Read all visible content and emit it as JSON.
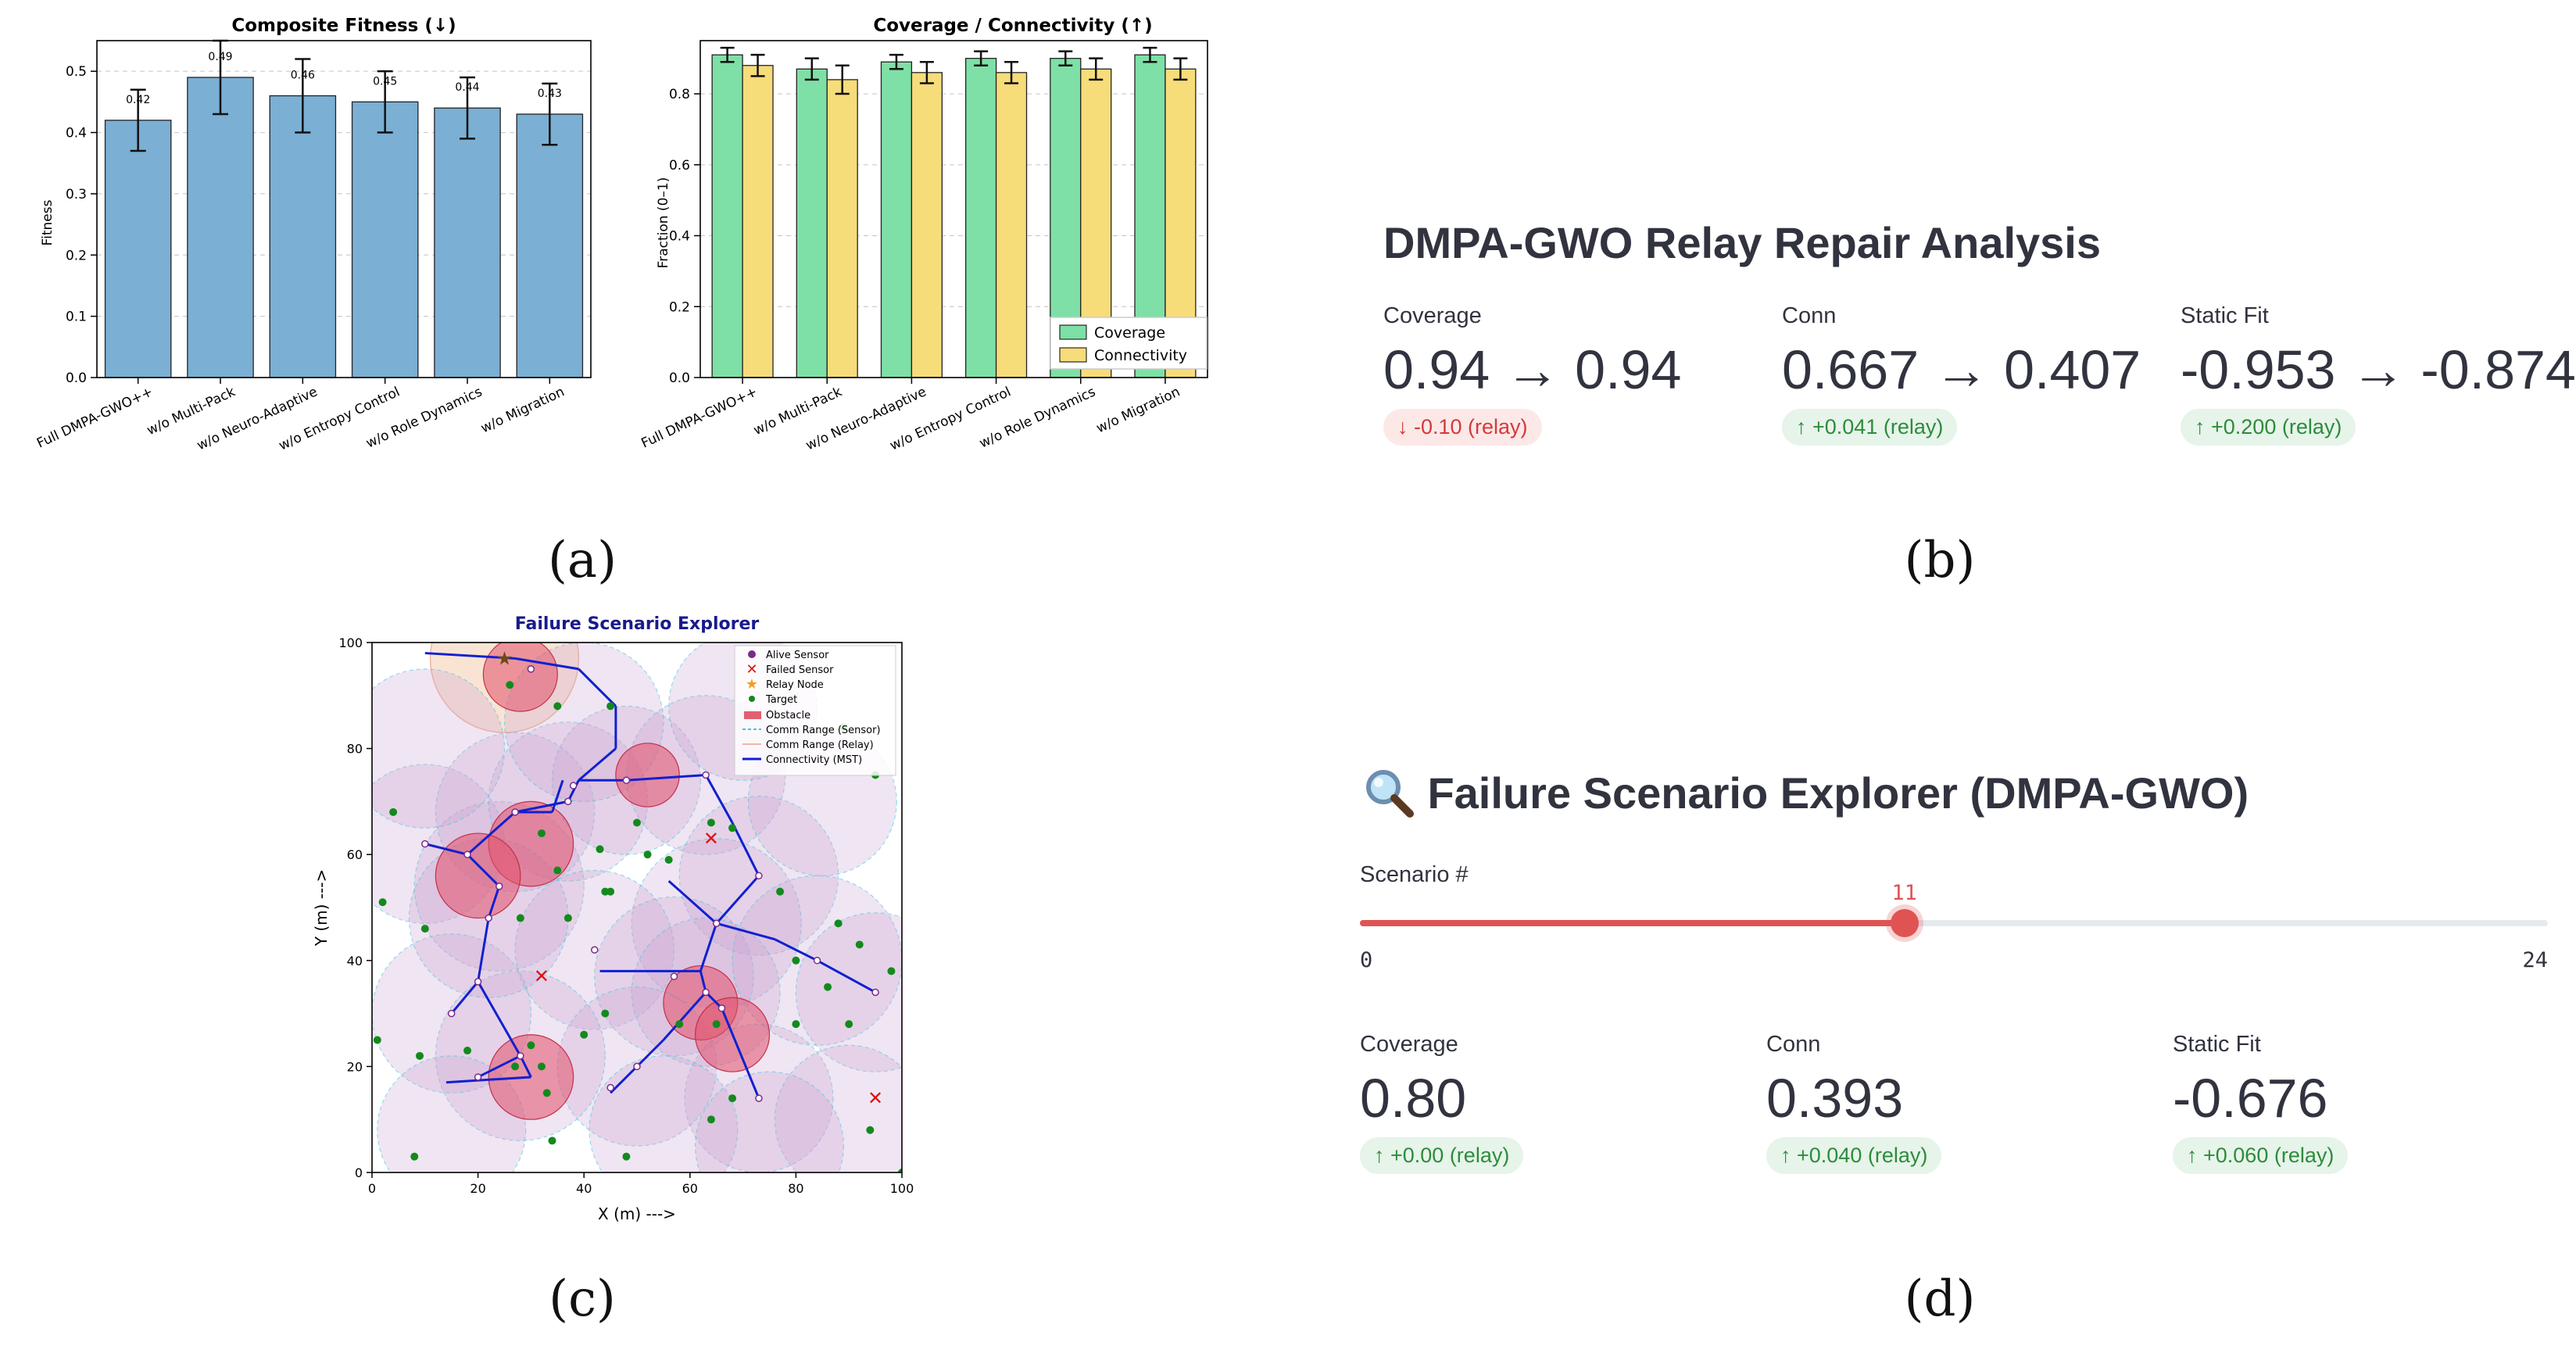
{
  "panel_labels": [
    "(a)",
    "(b)",
    "(c)",
    "(d)"
  ],
  "chart_data": [
    {
      "type": "bar",
      "title": "Composite Fitness (↓)",
      "xlabel": "",
      "ylabel": "Fitness",
      "ylim": [
        0,
        0.55
      ],
      "yticks": [
        0.0,
        0.1,
        0.2,
        0.3,
        0.4,
        0.5
      ],
      "categories": [
        "Full DMPA-GWO++",
        "w/o Multi-Pack",
        "w/o Neuro-Adaptive",
        "w/o Entropy Control",
        "w/o Role Dynamics",
        "w/o Migration"
      ],
      "values": [
        0.42,
        0.49,
        0.46,
        0.45,
        0.44,
        0.43
      ],
      "errors": [
        0.05,
        0.06,
        0.06,
        0.05,
        0.05,
        0.05
      ],
      "labels": [
        "0.42",
        "0.49",
        "0.46",
        "0.45",
        "0.44",
        "0.43"
      ],
      "color": "#7bafd4",
      "grid": "y-dashed"
    },
    {
      "type": "bar",
      "title": "Coverage / Connectivity (↑)",
      "xlabel": "",
      "ylabel": "Fraction (0–1)",
      "ylim": [
        0,
        0.95
      ],
      "yticks": [
        0.0,
        0.2,
        0.4,
        0.6,
        0.8
      ],
      "categories": [
        "Full DMPA-GWO++",
        "w/o Multi-Pack",
        "w/o Neuro-Adaptive",
        "w/o Entropy Control",
        "w/o Role Dynamics",
        "w/o Migration"
      ],
      "series": [
        {
          "name": "Coverage",
          "values": [
            0.91,
            0.87,
            0.89,
            0.9,
            0.9,
            0.91
          ],
          "errors": [
            0.02,
            0.03,
            0.02,
            0.02,
            0.02,
            0.02
          ],
          "color": "#7ee0a6"
        },
        {
          "name": "Connectivity",
          "values": [
            0.88,
            0.84,
            0.86,
            0.86,
            0.87,
            0.87
          ],
          "errors": [
            0.03,
            0.04,
            0.03,
            0.03,
            0.03,
            0.03
          ],
          "color": "#f7dc7a"
        }
      ],
      "legend": "bottom-right",
      "grid": "y-dashed"
    },
    {
      "type": "scatter",
      "title": "Failure Scenario Explorer",
      "xlabel": "X (m) --->",
      "ylabel": "Y (m) --->",
      "xlim": [
        0,
        100
      ],
      "ylim": [
        0,
        100
      ],
      "xticks": [
        0,
        20,
        40,
        60,
        80,
        100
      ],
      "yticks": [
        0,
        20,
        40,
        60,
        80,
        100
      ],
      "legend_entries": [
        "Alive Sensor",
        "Failed Sensor",
        "Relay Node",
        "Target",
        "Obstacle",
        "Comm Range (Sensor)",
        "Comm Range (Relay)",
        "Connectivity (MST)"
      ],
      "alive_sensors": [
        [
          10,
          62
        ],
        [
          18,
          60
        ],
        [
          24,
          54
        ],
        [
          27,
          68
        ],
        [
          37,
          70
        ],
        [
          38,
          73
        ],
        [
          48,
          74
        ],
        [
          63,
          75
        ],
        [
          73,
          56
        ],
        [
          65,
          47
        ],
        [
          42,
          42
        ],
        [
          57,
          37
        ],
        [
          63,
          34
        ],
        [
          66,
          31
        ],
        [
          73,
          14
        ],
        [
          84,
          40
        ],
        [
          95,
          34
        ],
        [
          50,
          20
        ],
        [
          45,
          16
        ],
        [
          28,
          22
        ],
        [
          20,
          18
        ],
        [
          15,
          30
        ],
        [
          20,
          36
        ],
        [
          22,
          48
        ],
        [
          30,
          95
        ]
      ],
      "failed_sensors": [
        [
          64,
          63
        ],
        [
          32,
          37
        ],
        [
          95,
          14
        ]
      ],
      "relay_nodes": [
        [
          25,
          97
        ]
      ],
      "targets": [
        [
          4,
          68
        ],
        [
          2,
          51
        ],
        [
          10,
          46
        ],
        [
          9,
          22
        ],
        [
          1,
          25
        ],
        [
          8,
          3
        ],
        [
          18,
          23
        ],
        [
          30,
          24
        ],
        [
          32,
          20
        ],
        [
          33,
          15
        ],
        [
          34,
          6
        ],
        [
          48,
          3
        ],
        [
          27,
          20
        ],
        [
          26,
          92
        ],
        [
          35,
          88
        ],
        [
          45,
          88
        ],
        [
          44,
          53
        ],
        [
          45,
          53
        ],
        [
          52,
          60
        ],
        [
          64,
          66
        ],
        [
          68,
          65
        ],
        [
          56,
          59
        ],
        [
          43,
          61
        ],
        [
          32,
          64
        ],
        [
          50,
          66
        ],
        [
          40,
          26
        ],
        [
          44,
          30
        ],
        [
          58,
          28
        ],
        [
          65,
          28
        ],
        [
          80,
          40
        ],
        [
          80,
          28
        ],
        [
          86,
          35
        ],
        [
          88,
          47
        ],
        [
          90,
          28
        ],
        [
          92,
          43
        ],
        [
          94,
          8
        ],
        [
          98,
          38
        ],
        [
          100,
          0
        ],
        [
          95,
          75
        ],
        [
          89,
          84
        ],
        [
          77,
          53
        ],
        [
          64,
          10
        ],
        [
          68,
          14
        ],
        [
          37,
          48
        ],
        [
          35,
          57
        ],
        [
          28,
          48
        ]
      ],
      "obstacles": [
        [
          28,
          94,
          7
        ],
        [
          52,
          75,
          6
        ],
        [
          30,
          62,
          8
        ],
        [
          20,
          56,
          8
        ],
        [
          62,
          32,
          7
        ],
        [
          68,
          26,
          7
        ],
        [
          30,
          18,
          8
        ]
      ],
      "sensor_ranges": [
        [
          10,
          62,
          15
        ],
        [
          24,
          54,
          16
        ],
        [
          27,
          68,
          15
        ],
        [
          37,
          70,
          15
        ],
        [
          48,
          74,
          14
        ],
        [
          63,
          75,
          15
        ],
        [
          73,
          56,
          15
        ],
        [
          65,
          47,
          16
        ],
        [
          42,
          42,
          15
        ],
        [
          57,
          37,
          15
        ],
        [
          63,
          34,
          14
        ],
        [
          73,
          14,
          14
        ],
        [
          84,
          40,
          16
        ],
        [
          95,
          34,
          15
        ],
        [
          50,
          20,
          15
        ],
        [
          28,
          22,
          16
        ],
        [
          15,
          30,
          15
        ],
        [
          22,
          48,
          15
        ],
        [
          10,
          80,
          15
        ],
        [
          70,
          88,
          14
        ],
        [
          40,
          85,
          15
        ],
        [
          85,
          70,
          14
        ],
        [
          90,
          10,
          14
        ],
        [
          15,
          8,
          14
        ],
        [
          55,
          8,
          14
        ],
        [
          75,
          5,
          14
        ]
      ],
      "relay_range": [
        25,
        97,
        14
      ],
      "mst_edges": [
        [
          [
            10,
            98
          ],
          [
            27,
            97
          ]
        ],
        [
          [
            27,
            97
          ],
          [
            39,
            95
          ]
        ],
        [
          [
            39,
            95
          ],
          [
            46,
            88
          ]
        ],
        [
          [
            46,
            88
          ],
          [
            46,
            80
          ]
        ],
        [
          [
            46,
            80
          ],
          [
            39,
            74
          ]
        ],
        [
          [
            39,
            74
          ],
          [
            37,
            70
          ]
        ],
        [
          [
            37,
            70
          ],
          [
            27,
            68
          ]
        ],
        [
          [
            27,
            68
          ],
          [
            18,
            60
          ]
        ],
        [
          [
            18,
            60
          ],
          [
            10,
            62
          ]
        ],
        [
          [
            18,
            60
          ],
          [
            24,
            54
          ]
        ],
        [
          [
            24,
            54
          ],
          [
            22,
            48
          ]
        ],
        [
          [
            22,
            48
          ],
          [
            20,
            36
          ]
        ],
        [
          [
            20,
            36
          ],
          [
            15,
            30
          ]
        ],
        [
          [
            20,
            36
          ],
          [
            28,
            22
          ]
        ],
        [
          [
            28,
            22
          ],
          [
            20,
            18
          ]
        ],
        [
          [
            28,
            22
          ],
          [
            30,
            18
          ]
        ],
        [
          [
            30,
            18
          ],
          [
            14,
            17
          ]
        ],
        [
          [
            39,
            74
          ],
          [
            48,
            74
          ]
        ],
        [
          [
            48,
            74
          ],
          [
            63,
            75
          ]
        ],
        [
          [
            63,
            75
          ],
          [
            68,
            66
          ]
        ],
        [
          [
            68,
            66
          ],
          [
            73,
            56
          ]
        ],
        [
          [
            73,
            56
          ],
          [
            65,
            47
          ]
        ],
        [
          [
            65,
            47
          ],
          [
            56,
            55
          ]
        ],
        [
          [
            65,
            47
          ],
          [
            76,
            44
          ]
        ],
        [
          [
            76,
            44
          ],
          [
            84,
            40
          ]
        ],
        [
          [
            84,
            40
          ],
          [
            95,
            34
          ]
        ],
        [
          [
            65,
            47
          ],
          [
            62,
            38
          ]
        ],
        [
          [
            62,
            38
          ],
          [
            43,
            38
          ]
        ],
        [
          [
            62,
            38
          ],
          [
            63,
            34
          ]
        ],
        [
          [
            63,
            34
          ],
          [
            66,
            31
          ]
        ],
        [
          [
            66,
            31
          ],
          [
            73,
            14
          ]
        ],
        [
          [
            63,
            34
          ],
          [
            55,
            25
          ]
        ],
        [
          [
            55,
            25
          ],
          [
            45,
            15
          ]
        ],
        [
          [
            27,
            68
          ],
          [
            34,
            68
          ]
        ],
        [
          [
            34,
            68
          ],
          [
            36,
            74
          ]
        ]
      ]
    }
  ],
  "panel_b": {
    "title": "DMPA-GWO Relay Repair Analysis",
    "metrics": [
      {
        "label": "Coverage",
        "value": "0.94 → 0.94",
        "delta": "↓ -0.10 (relay)",
        "direction": "down"
      },
      {
        "label": "Conn",
        "value": "0.667 → 0.407",
        "delta": "↑ +0.041 (relay)",
        "direction": "up"
      },
      {
        "label": "Static Fit",
        "value": "-0.953 → -0.874",
        "delta": "↑ +0.200 (relay)",
        "direction": "up"
      }
    ]
  },
  "panel_d": {
    "icon": "magnifier-icon",
    "title": "Failure Scenario Explorer (DMPA-GWO)",
    "slider": {
      "label": "Scenario #",
      "min": 0,
      "max": 24,
      "value": 11,
      "min_label": "0",
      "max_label": "24",
      "value_label": "11",
      "color": "#e05353"
    },
    "metrics": [
      {
        "label": "Coverage",
        "value": "0.80",
        "delta": "↑ +0.00 (relay)",
        "direction": "up"
      },
      {
        "label": "Conn",
        "value": "0.393",
        "delta": "↑ +0.040 (relay)",
        "direction": "up"
      },
      {
        "label": "Static Fit",
        "value": "-0.676",
        "delta": "↑ +0.060 (relay)",
        "direction": "up"
      }
    ]
  }
}
